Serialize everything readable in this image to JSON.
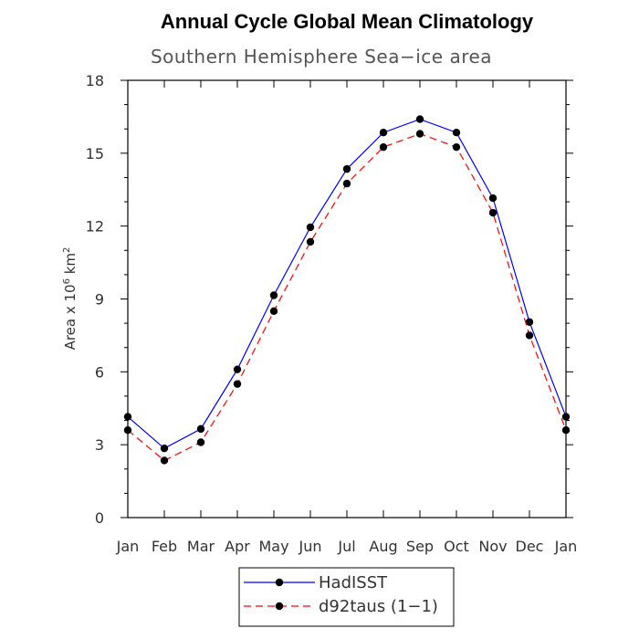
{
  "chart_data": {
    "type": "line",
    "title": "Annual Cycle Global Mean Climatology",
    "subtitle": "Southern Hemisphere Sea−ice area",
    "ylabel_text": "Area x 10",
    "ylabel_sup1": "6",
    "ylabel_mid": " km",
    "ylabel_sup2": "2",
    "xlabel": "",
    "categories": [
      "Jan",
      "Feb",
      "Mar",
      "Apr",
      "May",
      "Jun",
      "Jul",
      "Aug",
      "Sep",
      "Oct",
      "Nov",
      "Dec",
      "Jan"
    ],
    "ylim": [
      0,
      18
    ],
    "yticks": [
      0,
      3,
      6,
      9,
      12,
      15,
      18
    ],
    "series": [
      {
        "name": "HadISST",
        "color": "#0000ff",
        "dash": "solid",
        "values": [
          4.15,
          2.85,
          3.65,
          6.1,
          9.15,
          11.95,
          14.35,
          15.85,
          16.4,
          15.85,
          13.15,
          8.05,
          4.15
        ]
      },
      {
        "name": "d92taus (1−1)",
        "color": "#ff0000",
        "dash": "dashed",
        "values": [
          3.6,
          2.35,
          3.1,
          5.5,
          8.5,
          11.35,
          13.75,
          15.25,
          15.8,
          15.25,
          12.55,
          7.5,
          3.6
        ]
      }
    ],
    "grid": false,
    "legend_position": "bottom-center"
  }
}
